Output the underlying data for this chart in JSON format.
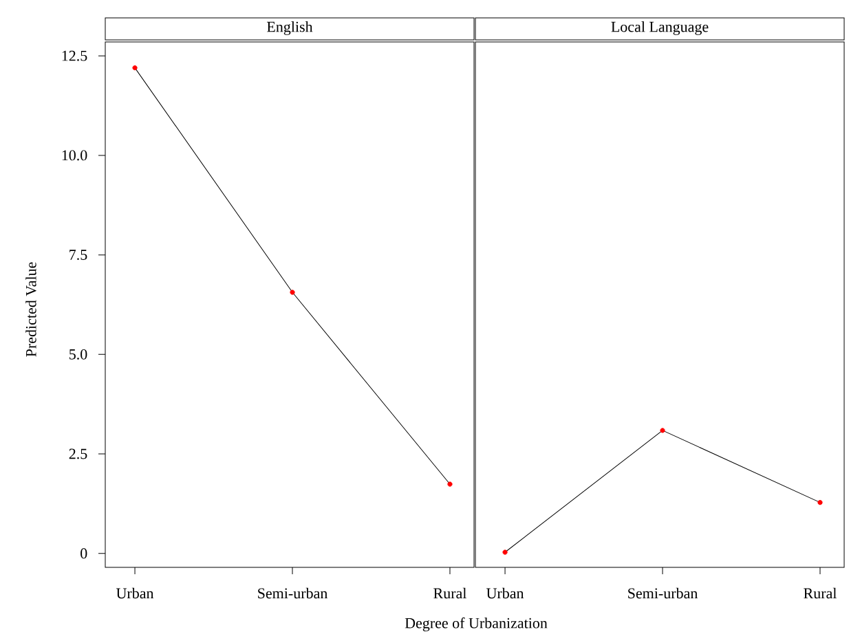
{
  "chart_data": [
    {
      "type": "line",
      "title": "English",
      "xlabel": "Degree of Urbanization",
      "ylabel": "Predicted Value",
      "categories": [
        "Urban",
        "Semi-urban",
        "Rural"
      ],
      "series": [
        {
          "color": "#000000",
          "colors": [
            "#ff0000",
            "#ff0000",
            "#ff0000"
          ],
          "values": [
            12.2,
            6.56,
            1.74
          ]
        }
      ],
      "ylim": [
        -0.35,
        12.85
      ],
      "yticks": [
        0,
        2.5,
        {
          "value": 5,
          "label": "5.0"
        },
        {
          "value": 7.5,
          "label": "7.5"
        },
        {
          "value": 10,
          "label": "10.0"
        },
        {
          "value": 12.5,
          "label": "12.5"
        }
      ],
      "marker": "circle"
    },
    {
      "type": "line",
      "title": "Local Language",
      "categories": [
        "Urban",
        "Semi-urban",
        "Rural"
      ],
      "series": [
        {
          "color": "#000000",
          "colors": [
            "#ff0000",
            "#ff0000",
            "#ff0000"
          ],
          "values": [
            0.03,
            3.09,
            1.28
          ]
        }
      ],
      "ylim": [
        -0.35,
        12.85
      ],
      "tick_labels": "x",
      "marker": "circle"
    }
  ]
}
